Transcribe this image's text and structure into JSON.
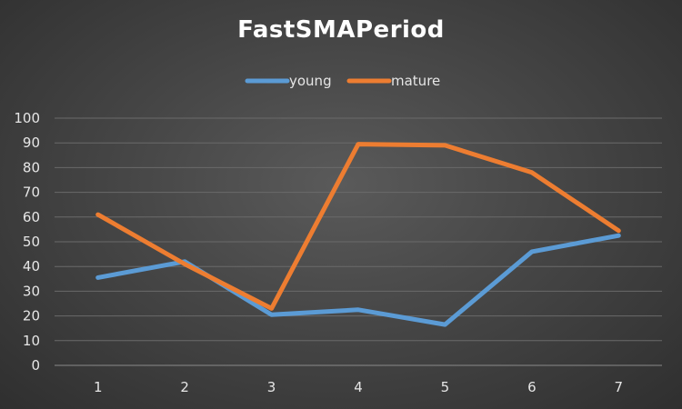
{
  "chart_data": {
    "type": "line",
    "title": "FastSMAPeriod",
    "xlabel": "",
    "ylabel": "",
    "categories": [
      "1",
      "2",
      "3",
      "4",
      "5",
      "6",
      "7"
    ],
    "series": [
      {
        "name": "young",
        "color": "#5b9bd5",
        "values": [
          35.5,
          42,
          20.5,
          22.5,
          16.5,
          46,
          52.5
        ]
      },
      {
        "name": "mature",
        "color": "#ed7d31",
        "values": [
          61,
          41,
          23,
          89.5,
          89,
          78,
          54.5
        ]
      }
    ],
    "ylim": [
      0,
      100
    ],
    "yticks": [
      0,
      10,
      20,
      30,
      40,
      50,
      60,
      70,
      80,
      90,
      100
    ],
    "grid": true,
    "legend_position": "top"
  }
}
